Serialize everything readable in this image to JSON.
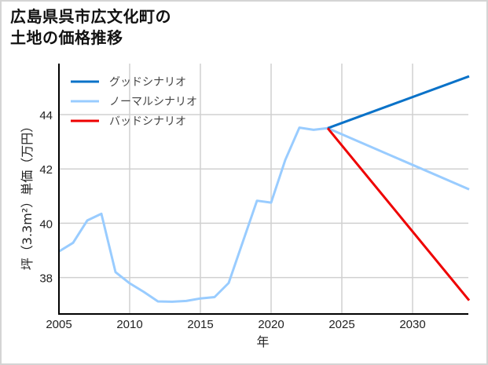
{
  "title": {
    "line1": "広島県呉市広文化町の",
    "line2": "土地の価格推移"
  },
  "chart_data": {
    "type": "line",
    "title": "広島県呉市広文化町の土地の価格推移",
    "xlabel": "年",
    "ylabel": "坪（3.3m²）単価（万円）",
    "xlim": [
      2005,
      2034
    ],
    "ylim": [
      36.6,
      45.8
    ],
    "xticks": [
      2005,
      2010,
      2015,
      2020,
      2025,
      2030
    ],
    "yticks": [
      38,
      40,
      42,
      44
    ],
    "grid": true,
    "legend_position": "upper left",
    "series": [
      {
        "name": "グッドシナリオ",
        "color": "#0a72c8",
        "x": [
          2024,
          2034
        ],
        "values": [
          43.5,
          45.41
        ]
      },
      {
        "name": "ノーマルシナリオ",
        "color": "#99ccff",
        "x": [
          2005,
          2006,
          2007,
          2008,
          2009,
          2010,
          2011,
          2012,
          2013,
          2014,
          2015,
          2016,
          2017,
          2019,
          2020,
          2021,
          2022,
          2023,
          2024,
          2034
        ],
        "values": [
          38.96,
          39.28,
          40.1,
          40.35,
          38.2,
          37.79,
          37.47,
          37.12,
          37.11,
          37.14,
          37.23,
          37.28,
          37.8,
          40.83,
          40.76,
          42.33,
          43.52,
          43.44,
          43.5,
          41.25
        ]
      },
      {
        "name": "バッドシナリオ",
        "color": "#ee0000",
        "x": [
          2024,
          2034
        ],
        "values": [
          43.5,
          37.16
        ]
      }
    ]
  }
}
